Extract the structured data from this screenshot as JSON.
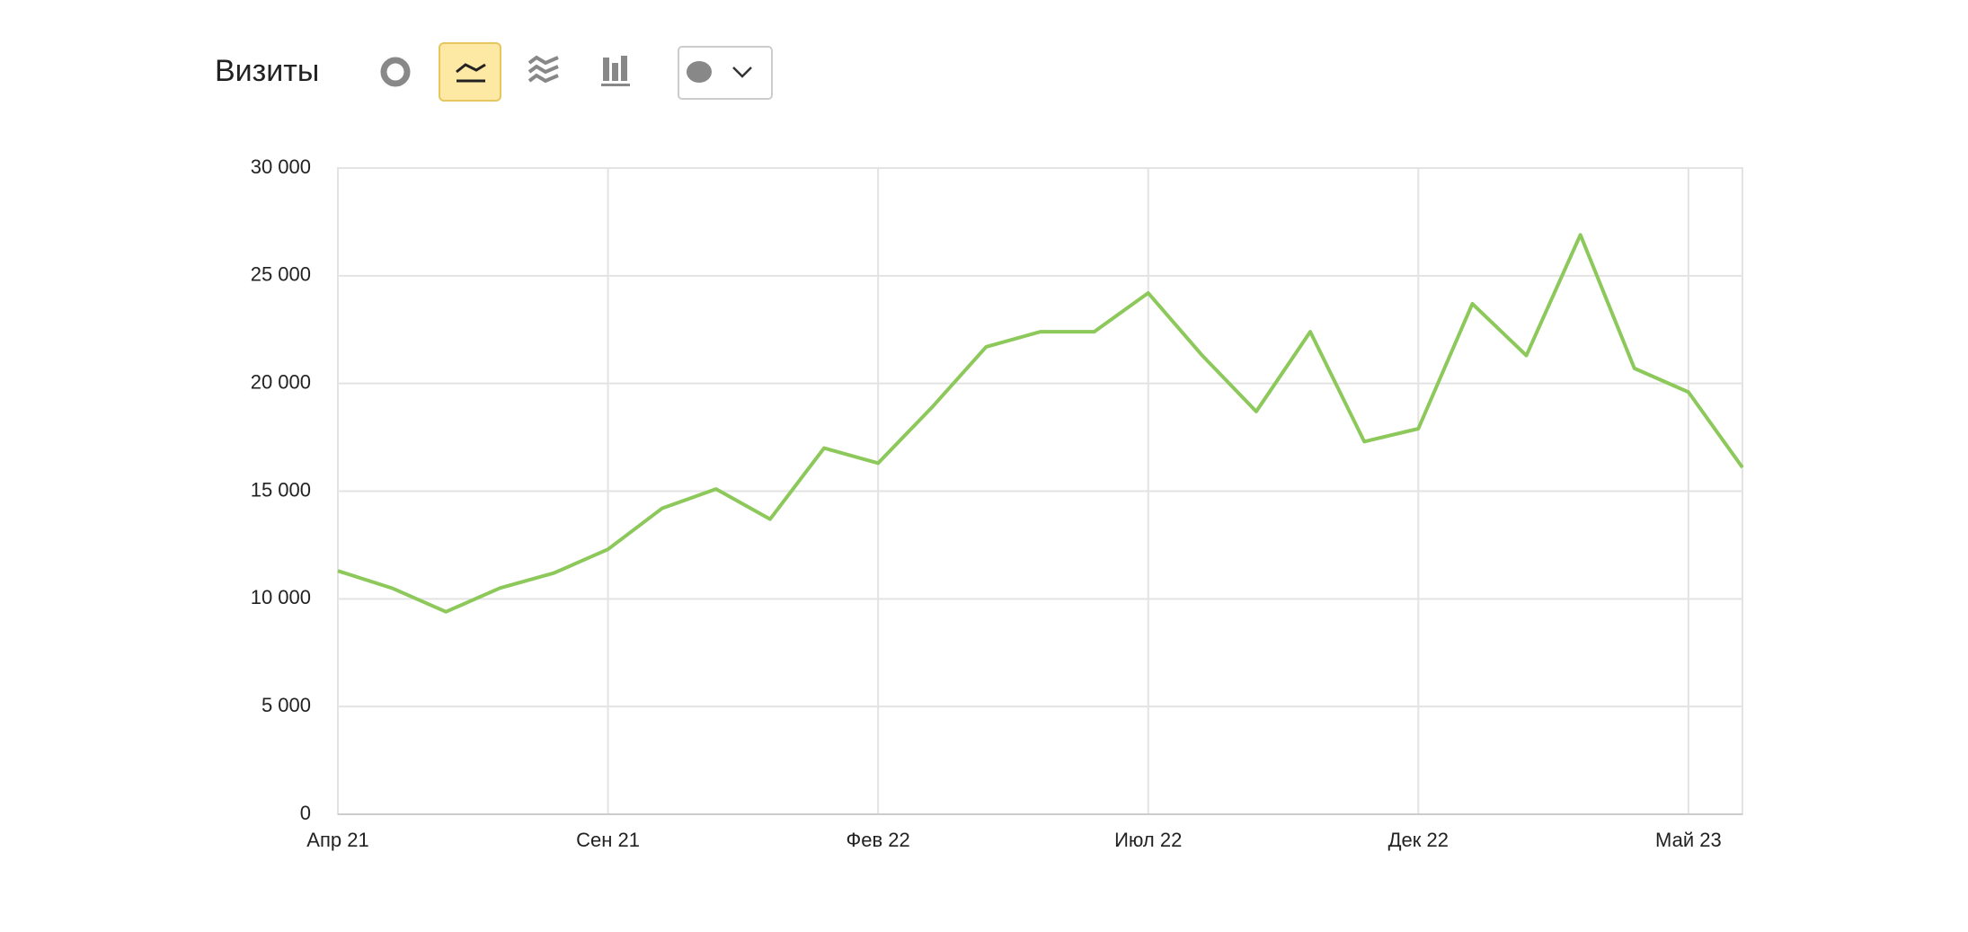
{
  "title": "Визиты",
  "chart_data": {
    "type": "line",
    "color": "#8cc85a",
    "categories": [
      "Апр 21",
      null,
      null,
      null,
      null,
      "Сен 21",
      null,
      null,
      null,
      null,
      "Фев 22",
      null,
      null,
      null,
      null,
      "Июл 22",
      null,
      null,
      null,
      null,
      "Дек 22",
      null,
      null,
      null,
      null,
      "Май 23",
      null
    ],
    "values": [
      11300,
      10500,
      9400,
      10500,
      11200,
      12300,
      14200,
      15100,
      13700,
      17000,
      16300,
      18900,
      21700,
      22400,
      22400,
      24200,
      21300,
      18700,
      22400,
      17300,
      17900,
      23700,
      21300,
      26900,
      20700,
      19600,
      16100
    ],
    "ylim": [
      0,
      30000
    ],
    "yticks": [
      0,
      {
        "value": 5000,
        "label": "5 000"
      },
      {
        "value": 10000,
        "label": "10 000"
      },
      {
        "value": 15000,
        "label": "15 000"
      },
      {
        "value": 20000,
        "label": "20 000"
      },
      {
        "value": 25000,
        "label": "25 000"
      },
      {
        "value": 30000,
        "label": "30 000"
      }
    ],
    "grid": true
  }
}
